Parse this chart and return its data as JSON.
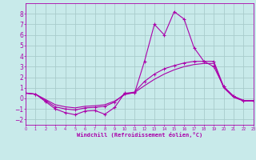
{
  "background_color": "#c8eaea",
  "grid_color": "#a8cccc",
  "line_color": "#aa00aa",
  "xlabel": "Windchill (Refroidissement éolien,°C)",
  "xlim": [
    0,
    23
  ],
  "ylim": [
    -2.5,
    9.0
  ],
  "xticks": [
    0,
    1,
    2,
    3,
    4,
    5,
    6,
    7,
    8,
    9,
    10,
    11,
    12,
    13,
    14,
    15,
    16,
    17,
    18,
    19,
    20,
    21,
    22,
    23
  ],
  "yticks": [
    -2,
    -1,
    0,
    1,
    2,
    3,
    4,
    5,
    6,
    7,
    8
  ],
  "s1_x": [
    0,
    1,
    2,
    3,
    4,
    5,
    6,
    7,
    8,
    9,
    10,
    11,
    12,
    13,
    14,
    15,
    16,
    17,
    18,
    19,
    20,
    21,
    22,
    23
  ],
  "s1_y": [
    0.5,
    0.4,
    -0.3,
    -1.0,
    -1.35,
    -1.55,
    -1.2,
    -1.15,
    -1.5,
    -0.85,
    0.5,
    0.5,
    3.5,
    7.0,
    6.0,
    8.2,
    7.5,
    4.8,
    3.5,
    3.0,
    1.1,
    0.2,
    -0.2,
    -0.2
  ],
  "s2_x": [
    0,
    1,
    2,
    3,
    4,
    5,
    6,
    7,
    8,
    9,
    10,
    11,
    12,
    13,
    14,
    15,
    16,
    17,
    18,
    19,
    20,
    21,
    22,
    23
  ],
  "s2_y": [
    0.5,
    0.4,
    -0.2,
    -0.8,
    -1.0,
    -1.1,
    -0.9,
    -0.85,
    -0.75,
    -0.35,
    0.45,
    0.6,
    1.6,
    2.3,
    2.8,
    3.1,
    3.35,
    3.5,
    3.5,
    3.5,
    1.1,
    0.2,
    -0.2,
    -0.2
  ],
  "s3_x": [
    0,
    1,
    2,
    3,
    4,
    5,
    6,
    7,
    8,
    9,
    10,
    11,
    12,
    13,
    14,
    15,
    16,
    17,
    18,
    19,
    20,
    21,
    22,
    23
  ],
  "s3_y": [
    0.5,
    0.4,
    -0.1,
    -0.6,
    -0.8,
    -0.9,
    -0.75,
    -0.7,
    -0.6,
    -0.25,
    0.35,
    0.55,
    1.2,
    1.8,
    2.3,
    2.7,
    3.0,
    3.2,
    3.3,
    3.3,
    1.0,
    0.1,
    -0.25,
    -0.25
  ]
}
